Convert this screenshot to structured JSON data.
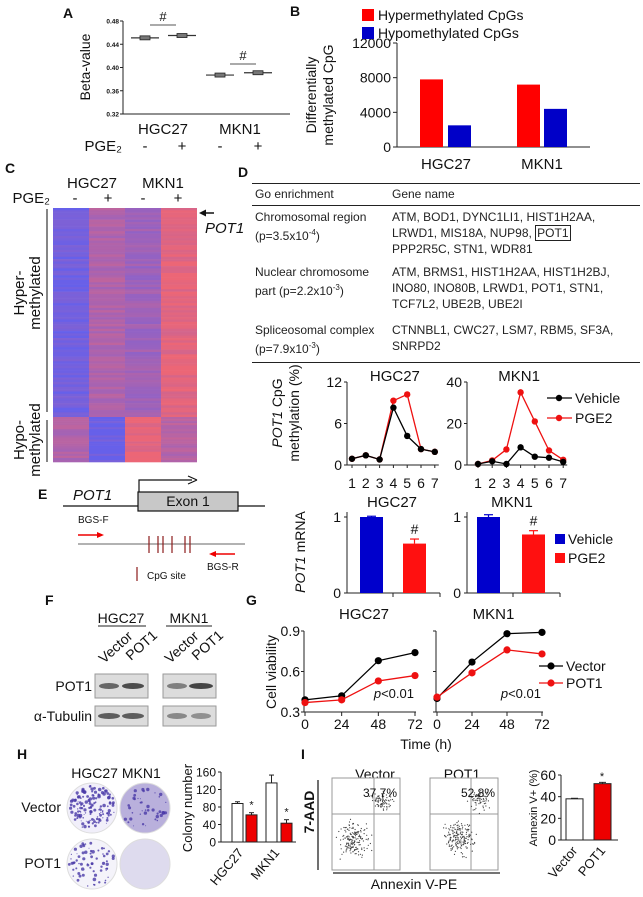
{
  "panel_labels": {
    "A": "A",
    "B": "B",
    "C": "C",
    "D": "D",
    "E": "E",
    "F": "F",
    "G": "G",
    "H": "H",
    "I": "I"
  },
  "chart_data": [
    {
      "panel": "A",
      "type": "scatter",
      "ylabel": "Beta-value",
      "ylim": [
        0.32,
        0.48
      ],
      "yticks": [
        "0.32",
        "0.36",
        "0.40",
        "0.44",
        "0.48"
      ],
      "groups": [
        "HGC27",
        "MKN1"
      ],
      "treatment_label": "PGE₂",
      "treatment": [
        "-",
        "+",
        "-",
        "+"
      ],
      "values": [
        0.451,
        0.455,
        0.387,
        0.391
      ],
      "significance": [
        "#",
        "#"
      ]
    },
    {
      "panel": "B",
      "type": "bar",
      "ylabel": [
        "Differentially",
        "methylated CpG"
      ],
      "categories": [
        "HGC27",
        "MKN1"
      ],
      "series": [
        {
          "name": "Hypermethylated CpGs",
          "color": "#ff0000",
          "values": [
            7800,
            7200
          ]
        },
        {
          "name": "Hypomethylated CpGs",
          "color": "#0000c8",
          "values": [
            2500,
            4400
          ]
        }
      ],
      "ylim": [
        0,
        12000
      ],
      "yticks": [
        "0",
        "4000",
        "8000",
        "12000"
      ],
      "legend": "top"
    },
    {
      "panel": "C",
      "type": "heatmap",
      "columns": [
        "HGC27",
        "MKN1"
      ],
      "treatment_label": "PGE₂",
      "treatment": [
        "-",
        "+",
        "-",
        "+"
      ],
      "row_groups": [
        [
          "Hyper-",
          "methylated"
        ],
        [
          "Hypo-",
          "methylated"
        ]
      ],
      "annotation": "POT1",
      "colors": {
        "low": "#6660ea",
        "high": "#ec6676"
      }
    },
    {
      "panel": "D",
      "type": "line",
      "ylabel_gene": "POT1",
      "ylabel_rest": " CpG",
      "ylabel_line2": "methylation (%)",
      "x": [
        "1",
        "2",
        "3",
        "4",
        "5",
        "6",
        "7"
      ],
      "legend": [
        "Vehicle",
        "PGE2"
      ],
      "series_colors": [
        "#000000",
        "#ee1111"
      ],
      "subplots": [
        {
          "title": "HGC27",
          "ylim": [
            0,
            12
          ],
          "yticks": [
            "0",
            "6",
            "12"
          ],
          "series": [
            {
              "name": "Vehicle",
              "values": [
                0.9,
                1.4,
                0.8,
                8.3,
                4.2,
                2.3,
                1.9
              ]
            },
            {
              "name": "PGE2",
              "values": [
                0.9,
                1.4,
                0.8,
                9.3,
                10.2,
                2.3,
                1.9
              ]
            }
          ]
        },
        {
          "title": "MKN1",
          "ylim": [
            0,
            40
          ],
          "yticks": [
            "0",
            "20",
            "40"
          ],
          "series": [
            {
              "name": "Vehicle",
              "values": [
                0.5,
                1.8,
                0.5,
                8.5,
                4.0,
                3.5,
                1.5
              ]
            },
            {
              "name": "PGE2",
              "values": [
                0.5,
                2.2,
                7.5,
                35,
                21,
                7,
                2.5
              ]
            }
          ]
        }
      ]
    },
    {
      "panel": "D",
      "type": "bar",
      "ylabel_gene": "POT1",
      "ylabel_rest": " mRNA",
      "yticks": [
        "0",
        "1"
      ],
      "ylim": [
        0,
        1
      ],
      "legend": [
        "Vehicle",
        "PGE2"
      ],
      "series_colors": [
        "#0000cc",
        "#ff1010"
      ],
      "subplots": [
        {
          "title": "HGC27",
          "values": [
            1.0,
            0.65
          ],
          "errors": [
            0.01,
            0.06
          ],
          "significance": "#"
        },
        {
          "title": "MKN1",
          "values": [
            1.0,
            0.77
          ],
          "errors": [
            0.03,
            0.05
          ],
          "significance": "#"
        }
      ]
    },
    {
      "panel": "G",
      "type": "line",
      "ylabel": "Cell viability",
      "xlabel": "Time (h)",
      "x": [
        0,
        24,
        48,
        72
      ],
      "xticks": [
        "0",
        "24",
        "48",
        "72"
      ],
      "ylim": [
        0.3,
        0.9
      ],
      "yticks": [
        "0.3",
        "0.6",
        "0.9"
      ],
      "legend": [
        "Vector",
        "POT1"
      ],
      "series_colors": [
        "#000000",
        "#ee1111"
      ],
      "annotation_p": "p",
      "annotation_rest": "<0.01",
      "subplots": [
        {
          "title": "HGC27",
          "series": [
            {
              "name": "Vector",
              "values": [
                0.39,
                0.42,
                0.68,
                0.74
              ]
            },
            {
              "name": "POT1",
              "values": [
                0.37,
                0.39,
                0.53,
                0.57
              ]
            }
          ]
        },
        {
          "title": "MKN1",
          "series": [
            {
              "name": "Vector",
              "values": [
                0.4,
                0.67,
                0.88,
                0.89
              ]
            },
            {
              "name": "POT1",
              "values": [
                0.41,
                0.59,
                0.76,
                0.73
              ]
            }
          ]
        }
      ]
    },
    {
      "panel": "H",
      "type": "bar",
      "ylabel": "Colony number",
      "categories": [
        "HGC27",
        "MKN1"
      ],
      "series": [
        {
          "name": "Vector",
          "color": "#ffffff",
          "values": [
            88,
            135
          ],
          "errors": [
            4,
            18
          ]
        },
        {
          "name": "POT1",
          "color": "#ee0000",
          "values": [
            62,
            43
          ],
          "errors": [
            5,
            8
          ]
        }
      ],
      "ylim": [
        0,
        160
      ],
      "yticks": [
        "0",
        "40",
        "80",
        "120",
        "160"
      ],
      "significance": [
        "*",
        "*"
      ]
    },
    {
      "panel": "I",
      "type": "bar",
      "ylabel": "Annexin V+ (%)",
      "categories": [
        "Vector",
        "POT1"
      ],
      "values": [
        38,
        52
      ],
      "errors": [
        0.5,
        1.2
      ],
      "colors": [
        "#ffffff",
        "#ee0000"
      ],
      "ylim": [
        0,
        60
      ],
      "yticks": [
        "0",
        "20",
        "40",
        "60"
      ],
      "significance": "*"
    }
  ],
  "go_table": {
    "headers": [
      "Go enrichment",
      "Gene name"
    ],
    "rows": [
      {
        "term": "Chromosomal region",
        "p_prefix": "(p=3.5x10",
        "p_exp": "-4",
        "p_suffix": ")",
        "genes": [
          "ATM, BOD1, DYNC1LI1, HIST1H2AA,",
          "LRWD1, MIS18A, NUP98, ",
          "PPP2R5C, STN1, WDR81"
        ],
        "highlight": "POT1"
      },
      {
        "term": "Nuclear chromosome",
        "p_prefix": "part (p=2.2x10",
        "p_exp": "-3",
        "p_suffix": ")",
        "genes": [
          "ATM, BRMS1, HIST1H2AA, HIST1H2BJ,",
          "INO80, INO80B, LRWD1, POT1, STN1,",
          "TCF7L2, UBE2B, UBE2I"
        ]
      },
      {
        "term": "Spliceosomal complex",
        "p_prefix": "(p=7.9x10",
        "p_exp": "-3",
        "p_suffix": ")",
        "genes": [
          "CTNNBL1, CWC27, LSM7, RBM5, SF3A,",
          "SNRPD2"
        ]
      }
    ]
  },
  "diagram_e": {
    "gene": "POT1",
    "exon": "Exon 1",
    "primer_f": "BGS-F",
    "primer_r": "BGS-R",
    "legend": "CpG site"
  },
  "western_f": {
    "groups": [
      "HGC27",
      "MKN1"
    ],
    "lanes": [
      "Vector",
      "POT1",
      "Vector",
      "POT1"
    ],
    "bands": [
      "POT1",
      "α-Tubulin"
    ]
  },
  "colony_h": {
    "header": "HGC27 MKN1",
    "row_labels": [
      "Vector",
      "POT1"
    ]
  },
  "flow_i": {
    "titles": [
      "Vector",
      "POT1"
    ],
    "percents": [
      "37.7%",
      "52.8%"
    ],
    "xlabel": "Annexin V-PE",
    "ylabel": "7-AAD"
  }
}
